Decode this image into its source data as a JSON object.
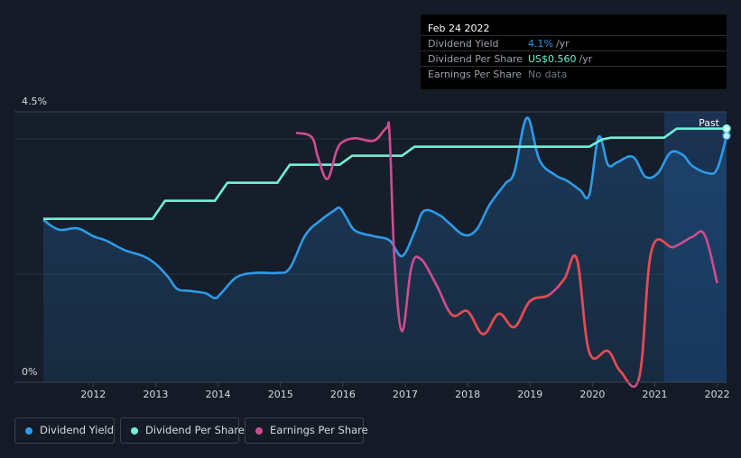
{
  "tooltip": {
    "date": "Feb 24 2022",
    "rows": [
      {
        "label": "Dividend Yield",
        "value": "4.1%",
        "unit": "/yr",
        "color": "#2d9be8"
      },
      {
        "label": "Dividend Per Share",
        "value": "US$0.560",
        "unit": "/yr",
        "color": "#6ff0d8"
      },
      {
        "label": "Earnings Per Share",
        "value": "No data",
        "unit": "",
        "color": "#6f7680"
      }
    ]
  },
  "legend": [
    {
      "label": "Dividend Yield",
      "color": "#2d9be8"
    },
    {
      "label": "Dividend Per Share",
      "color": "#6ff0d8"
    },
    {
      "label": "Earnings Per Share",
      "color": "#d14d91"
    }
  ],
  "chart_data": {
    "type": "line",
    "x_ticks": [
      "2012",
      "2013",
      "2014",
      "2015",
      "2016",
      "2017",
      "2018",
      "2019",
      "2020",
      "2021",
      "2022"
    ],
    "y_labels": [
      "4.5%",
      "0%"
    ],
    "ylim": [
      0,
      4.5
    ],
    "xlim": [
      2011.2,
      2022.15
    ],
    "past_label": "Past",
    "past_start": 2021.15,
    "grid": true,
    "colors": {
      "yield": "#2d9be8",
      "dps": "#6ff0d8",
      "eps": "#d14d91",
      "eps_negative": "#e84a4f"
    },
    "series": [
      {
        "name": "Dividend Yield",
        "key": "yield",
        "axis": "percent",
        "points": [
          [
            2011.2,
            2.7
          ],
          [
            2011.45,
            2.54
          ],
          [
            2011.75,
            2.56
          ],
          [
            2012.0,
            2.43
          ],
          [
            2012.2,
            2.36
          ],
          [
            2012.5,
            2.2
          ],
          [
            2012.8,
            2.1
          ],
          [
            2013.0,
            1.97
          ],
          [
            2013.2,
            1.75
          ],
          [
            2013.35,
            1.55
          ],
          [
            2013.55,
            1.52
          ],
          [
            2013.8,
            1.48
          ],
          [
            2013.95,
            1.4
          ],
          [
            2014.05,
            1.48
          ],
          [
            2014.3,
            1.75
          ],
          [
            2014.6,
            1.82
          ],
          [
            2014.95,
            1.82
          ],
          [
            2015.15,
            1.9
          ],
          [
            2015.4,
            2.45
          ],
          [
            2015.65,
            2.7
          ],
          [
            2015.85,
            2.85
          ],
          [
            2015.95,
            2.9
          ],
          [
            2016.05,
            2.75
          ],
          [
            2016.2,
            2.52
          ],
          [
            2016.5,
            2.43
          ],
          [
            2016.75,
            2.36
          ],
          [
            2016.95,
            2.1
          ],
          [
            2017.15,
            2.5
          ],
          [
            2017.3,
            2.85
          ],
          [
            2017.55,
            2.78
          ],
          [
            2017.7,
            2.65
          ],
          [
            2017.95,
            2.45
          ],
          [
            2018.15,
            2.55
          ],
          [
            2018.35,
            2.95
          ],
          [
            2018.6,
            3.3
          ],
          [
            2018.75,
            3.5
          ],
          [
            2018.95,
            4.4
          ],
          [
            2019.15,
            3.7
          ],
          [
            2019.4,
            3.45
          ],
          [
            2019.6,
            3.35
          ],
          [
            2019.8,
            3.2
          ],
          [
            2019.95,
            3.12
          ],
          [
            2020.1,
            4.08
          ],
          [
            2020.25,
            3.62
          ],
          [
            2020.4,
            3.66
          ],
          [
            2020.65,
            3.75
          ],
          [
            2020.85,
            3.42
          ],
          [
            2021.05,
            3.48
          ],
          [
            2021.25,
            3.82
          ],
          [
            2021.45,
            3.78
          ],
          [
            2021.6,
            3.6
          ],
          [
            2021.85,
            3.48
          ],
          [
            2022.0,
            3.55
          ],
          [
            2022.15,
            4.1
          ]
        ]
      },
      {
        "name": "Dividend Per Share",
        "key": "dps",
        "axis": "percent",
        "points": [
          [
            2011.2,
            2.72
          ],
          [
            2012.95,
            2.72
          ],
          [
            2013.15,
            3.02
          ],
          [
            2013.95,
            3.02
          ],
          [
            2014.15,
            3.32
          ],
          [
            2014.95,
            3.32
          ],
          [
            2015.15,
            3.62
          ],
          [
            2015.95,
            3.62
          ],
          [
            2016.15,
            3.77
          ],
          [
            2016.95,
            3.77
          ],
          [
            2017.15,
            3.92
          ],
          [
            2019.95,
            3.92
          ],
          [
            2020.15,
            4.04
          ],
          [
            2020.3,
            4.07
          ],
          [
            2021.15,
            4.07
          ],
          [
            2021.35,
            4.22
          ],
          [
            2022.15,
            4.22
          ]
        ]
      },
      {
        "name": "Earnings Per Share",
        "key": "eps",
        "axis": "percent",
        "negative_ranges": [
          [
            2017.7,
            2019.3
          ],
          [
            2019.45,
            2021.25
          ]
        ],
        "points": [
          [
            2015.25,
            4.15
          ],
          [
            2015.5,
            4.08
          ],
          [
            2015.6,
            3.75
          ],
          [
            2015.75,
            3.38
          ],
          [
            2015.9,
            3.85
          ],
          [
            2016.0,
            4.0
          ],
          [
            2016.2,
            4.06
          ],
          [
            2016.5,
            4.02
          ],
          [
            2016.7,
            4.23
          ],
          [
            2016.75,
            4.1
          ],
          [
            2016.83,
            2.0
          ],
          [
            2016.95,
            0.85
          ],
          [
            2017.1,
            1.92
          ],
          [
            2017.25,
            2.05
          ],
          [
            2017.5,
            1.62
          ],
          [
            2017.75,
            1.12
          ],
          [
            2018.0,
            1.18
          ],
          [
            2018.25,
            0.8
          ],
          [
            2018.5,
            1.14
          ],
          [
            2018.75,
            0.92
          ],
          [
            2019.0,
            1.35
          ],
          [
            2019.3,
            1.45
          ],
          [
            2019.55,
            1.72
          ],
          [
            2019.75,
            2.05
          ],
          [
            2019.95,
            0.5
          ],
          [
            2020.25,
            0.52
          ],
          [
            2020.45,
            0.18
          ],
          [
            2020.75,
            0.08
          ],
          [
            2020.95,
            2.2
          ],
          [
            2021.3,
            2.25
          ],
          [
            2021.6,
            2.42
          ],
          [
            2021.8,
            2.45
          ],
          [
            2022.0,
            1.65
          ]
        ]
      }
    ]
  }
}
